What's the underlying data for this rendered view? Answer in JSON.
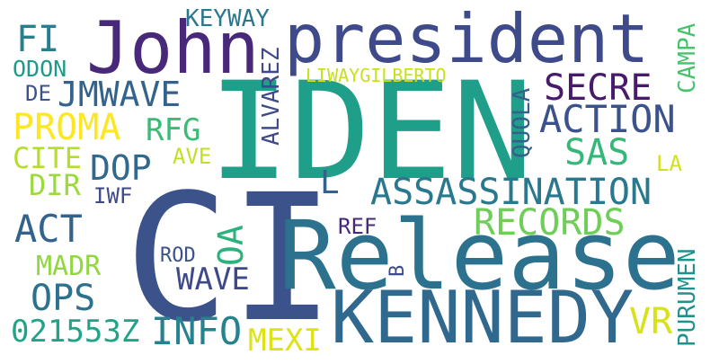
{
  "word_cloud": {
    "words": [
      {
        "id": "iden",
        "text": "IDEN",
        "color": "#1f9e89"
      },
      {
        "id": "ci",
        "text": "CI",
        "color": "#3b528b"
      },
      {
        "id": "release",
        "text": "Release",
        "color": "#2c728e"
      },
      {
        "id": "president",
        "text": "president",
        "color": "#3e4a89"
      },
      {
        "id": "john",
        "text": "John",
        "color": "#482878"
      },
      {
        "id": "kennedy",
        "text": "KENNEDY",
        "color": "#31688e"
      },
      {
        "id": "assassination",
        "text": "ASSASSINATION",
        "color": "#2a788e"
      },
      {
        "id": "records",
        "text": "RECORDS",
        "color": "#6ece58"
      },
      {
        "id": "action",
        "text": "ACTION",
        "color": "#3b528b"
      },
      {
        "id": "secre",
        "text": "SECRE",
        "color": "#481a6c"
      },
      {
        "id": "jmwave",
        "text": "JMWAVE",
        "color": "#33638d"
      },
      {
        "id": "proma",
        "text": "PROMA",
        "color": "#fde725"
      },
      {
        "id": "sas",
        "text": "SAS",
        "color": "#35b779"
      },
      {
        "id": "dop",
        "text": "DOP",
        "color": "#31688e"
      },
      {
        "id": "cite",
        "text": "CITE",
        "color": "#b5de2b"
      },
      {
        "id": "dir",
        "text": "DIR",
        "color": "#9bd93c"
      },
      {
        "id": "act",
        "text": "ACT",
        "color": "#33638d"
      },
      {
        "id": "ops",
        "text": "OPS",
        "color": "#2c728e"
      },
      {
        "id": "info",
        "text": "INFO",
        "color": "#26828e"
      },
      {
        "id": "mexi",
        "text": "MEXI",
        "color": "#dce319"
      },
      {
        "id": "vr",
        "text": "VR",
        "color": "#d8e219"
      },
      {
        "id": "wave",
        "text": "WAVE",
        "color": "#3e4989"
      },
      {
        "id": "madr",
        "text": "MADR",
        "color": "#90d743"
      },
      {
        "id": "021553z",
        "text": "021553Z",
        "color": "#20a386"
      },
      {
        "id": "fi",
        "text": "FI",
        "color": "#287d8e"
      },
      {
        "id": "odon",
        "text": "ODON",
        "color": "#1f9a8a"
      },
      {
        "id": "de",
        "text": "DE",
        "color": "#3b528b"
      },
      {
        "id": "keyway",
        "text": "KEYWAY",
        "color": "#2a788e"
      },
      {
        "id": "liway",
        "text": "LIWAYGILBERTO",
        "color": "#c8e020"
      },
      {
        "id": "rfg",
        "text": "RFG",
        "color": "#3bbb75"
      },
      {
        "id": "ave",
        "text": "AVE",
        "color": "#c2df23"
      },
      {
        "id": "iwf",
        "text": "IWF",
        "color": "#3e4a89"
      },
      {
        "id": "rod",
        "text": "ROD",
        "color": "#3b528b"
      },
      {
        "id": "ref",
        "text": "REF",
        "color": "#482878"
      },
      {
        "id": "la",
        "text": "LA",
        "color": "#d0e11c"
      },
      {
        "id": "l",
        "text": "L",
        "color": "#33638d"
      },
      {
        "id": "alvarez",
        "text": "ALVAREZ",
        "color": "#3e4a89"
      },
      {
        "id": "quola",
        "text": "QUOLA",
        "color": "#34608d"
      },
      {
        "id": "campa",
        "text": "CAMPA",
        "color": "#4ac16d"
      },
      {
        "id": "oa",
        "text": "OA",
        "color": "#2db27d"
      },
      {
        "id": "b",
        "text": "B",
        "color": "#3e4a89"
      },
      {
        "id": "purumen",
        "text": "PURUMEN",
        "color": "#21918c"
      }
    ]
  }
}
